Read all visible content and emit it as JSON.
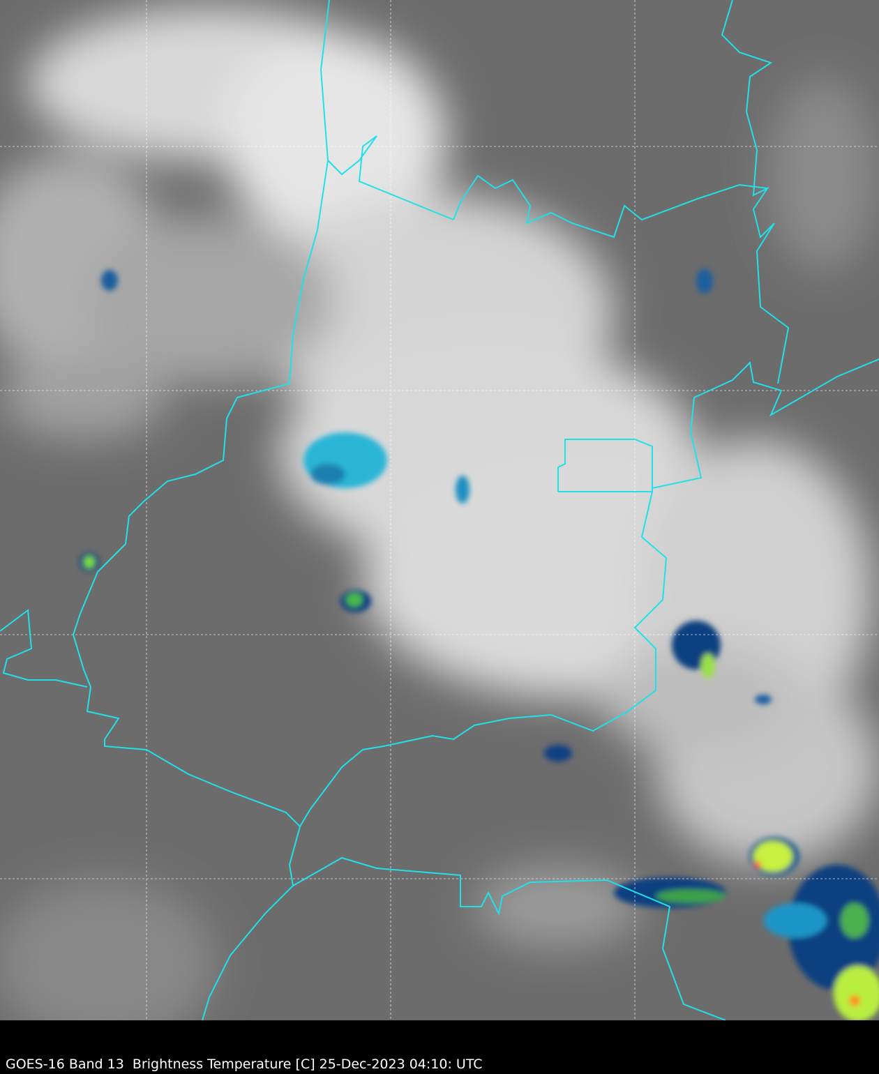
{
  "caption": "GOES-16 Band 13  Brightness Temperature [C] 25-Dec-2023 04:10: UTC",
  "colors": {
    "background_ir": "#6e6e6e",
    "borders": "#22e0e8",
    "gridlines": "#ffffff",
    "caption_bar": "#000000"
  },
  "layers": [
    "infrared-imagery",
    "political-borders",
    "lat-lon-grid"
  ]
}
